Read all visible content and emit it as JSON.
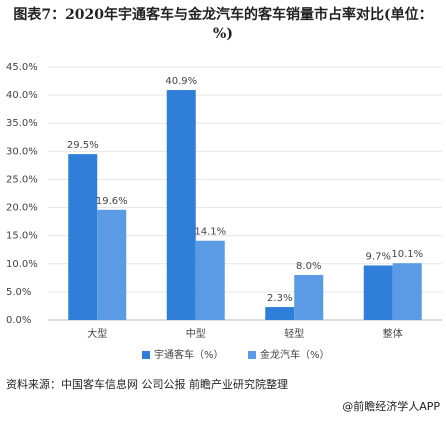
{
  "chart_data": {
    "type": "bar",
    "title": "图表7：2020年宇通客车与金龙汽车的客车销量市占率对比(单位：%)",
    "categories": [
      "大型",
      "中型",
      "轻型",
      "整体"
    ],
    "series": [
      {
        "name": "宇通客车（%）",
        "color": "#2f7ed8",
        "values": [
          29.5,
          40.9,
          2.3,
          9.7
        ],
        "value_labels": [
          "29.5%",
          "40.9%",
          "2.3%",
          "9.7%"
        ]
      },
      {
        "name": "金龙汽车（%）",
        "color": "#5b9be6",
        "values": [
          19.6,
          14.1,
          8.0,
          10.1
        ],
        "value_labels": [
          "19.6%",
          "14.1%",
          "8.0%",
          "10.1%"
        ]
      }
    ],
    "ylim": [
      0,
      45
    ],
    "yticks": [
      {
        "value": 0,
        "label": "0.0%"
      },
      {
        "value": 5,
        "label": "5.0%"
      },
      {
        "value": 10,
        "label": "10.0%"
      },
      {
        "value": 15,
        "label": "15.0%"
      },
      {
        "value": 20,
        "label": "20.0%"
      },
      {
        "value": 25,
        "label": "25.0%"
      },
      {
        "value": 30,
        "label": "30.0%"
      },
      {
        "value": 35,
        "label": "35.0%"
      },
      {
        "value": 40,
        "label": "40.0%"
      },
      {
        "value": 45,
        "label": "45.0%"
      }
    ],
    "grid": true,
    "source": "资料来源：中国客车信息网 公司公报 前瞻产业研究院整理",
    "credit": "@前瞻经济学人APP"
  }
}
